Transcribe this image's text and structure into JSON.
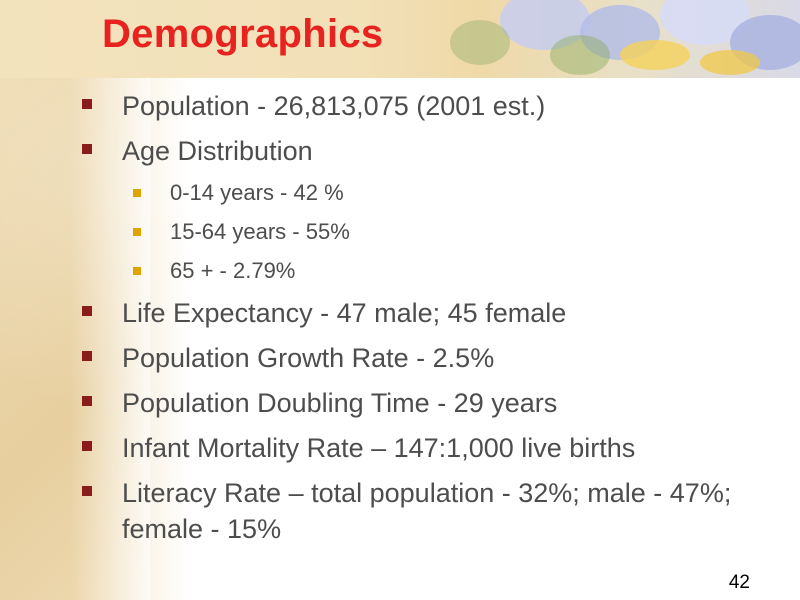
{
  "slide": {
    "title": "Demographics",
    "number": "42"
  },
  "bullets": [
    {
      "level": 1,
      "text": "Population - 26,813,075 (2001 est.)"
    },
    {
      "level": 1,
      "text": "Age Distribution"
    },
    {
      "level": 2,
      "text": "0-14 years - 42 %"
    },
    {
      "level": 2,
      "text": "15-64 years - 55%"
    },
    {
      "level": 2,
      "text": "65 + - 2.79%"
    },
    {
      "level": 1,
      "text": "Life Expectancy - 47 male; 45 female"
    },
    {
      "level": 1,
      "text": "Population Growth Rate - 2.5%"
    },
    {
      "level": 1,
      "text": "Population Doubling Time - 29 years"
    },
    {
      "level": 1,
      "text": "Infant Mortality Rate – 147:1,000 live births"
    },
    {
      "level": 1,
      "text": "Literacy Rate – total population - 32%; male - 47%; female - 15%"
    }
  ],
  "colors": {
    "title": "#e8231f",
    "body_text": "#4d4d4d",
    "bullet_level1": "#8b1c1c",
    "bullet_level2": "#e0a400"
  },
  "icons": {
    "bullet_level1": "square-bullet-icon",
    "bullet_level2": "small-square-bullet-icon"
  }
}
